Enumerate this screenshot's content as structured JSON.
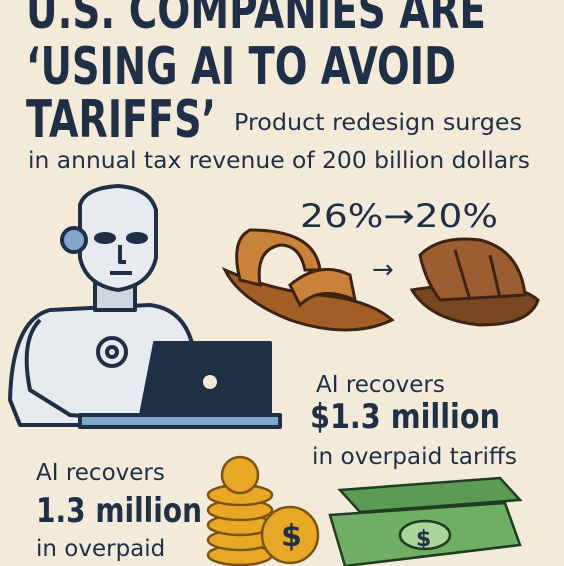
{
  "header": {
    "title_lines": [
      "U.S. COMPANIES ARE",
      "‘USING AI TO AVOID",
      "TARIFFS’"
    ],
    "subtitle_lines": [
      "Product redesign surges",
      "in annual tax revenue of 200 billion dollars"
    ]
  },
  "redesign": {
    "label": "26%→20%"
  },
  "callouts": [
    {
      "lead": "AI recovers",
      "amount": "$1.3 million",
      "tail": "in overpaid tariffs"
    },
    {
      "lead": "AI recovers",
      "amount": "1.3 million",
      "tail": "in overpaid"
    }
  ]
}
